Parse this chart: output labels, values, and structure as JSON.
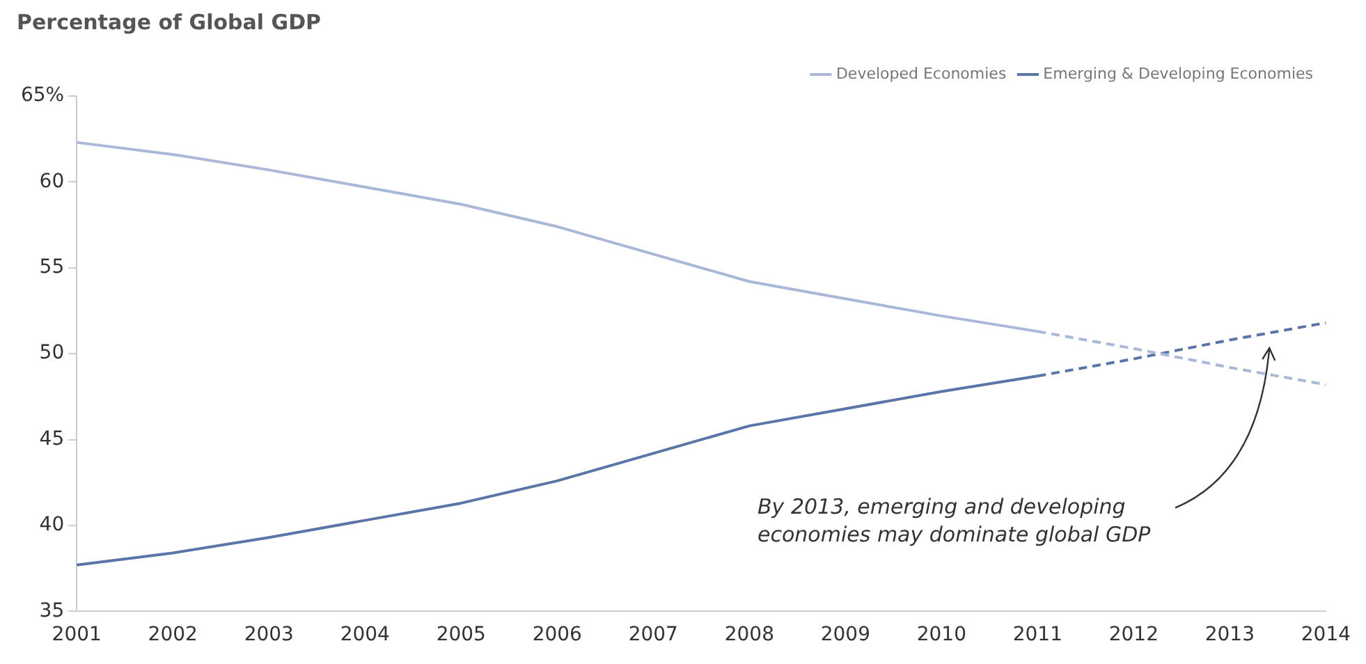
{
  "chart_data": {
    "type": "line",
    "title": "Percentage of Global GDP",
    "categories": [
      "2001",
      "2002",
      "2003",
      "2004",
      "2005",
      "2006",
      "2007",
      "2008",
      "2009",
      "2010",
      "2011",
      "2012",
      "2013",
      "2014"
    ],
    "series": [
      {
        "name": "Developed Economies",
        "color": "#a9b8d6",
        "values": [
          62.3,
          61.6,
          60.7,
          59.7,
          58.7,
          57.4,
          55.8,
          54.2,
          53.2,
          52.2,
          51.3,
          null,
          null,
          null
        ]
      },
      {
        "name": "Emerging & Developing Economies",
        "color": "#5b75a8",
        "values": [
          37.7,
          38.4,
          39.3,
          40.3,
          41.3,
          42.6,
          44.2,
          45.8,
          46.8,
          47.8,
          48.7,
          null,
          null,
          null
        ]
      },
      {
        "color": "#a9b8d6",
        "line_style": "dashed",
        "values": [
          null,
          null,
          null,
          null,
          null,
          null,
          null,
          null,
          null,
          null,
          51.3,
          50.3,
          49.2,
          48.2
        ]
      },
      {
        "color": "#5b75a8",
        "line_style": "dashed",
        "values": [
          null,
          null,
          null,
          null,
          null,
          null,
          null,
          null,
          null,
          null,
          48.7,
          49.7,
          50.8,
          51.8
        ]
      }
    ],
    "ylim": [
      35,
      65
    ],
    "yticks": [
      35,
      40,
      45,
      50,
      55,
      60,
      {
        "value": 65,
        "label": "65%"
      }
    ],
    "grid": false,
    "legend": "top right",
    "marker": "none",
    "line_style": "solid",
    "annotations": [
      "By 2013, emerging and developing economies may dominate global GDP"
    ]
  }
}
